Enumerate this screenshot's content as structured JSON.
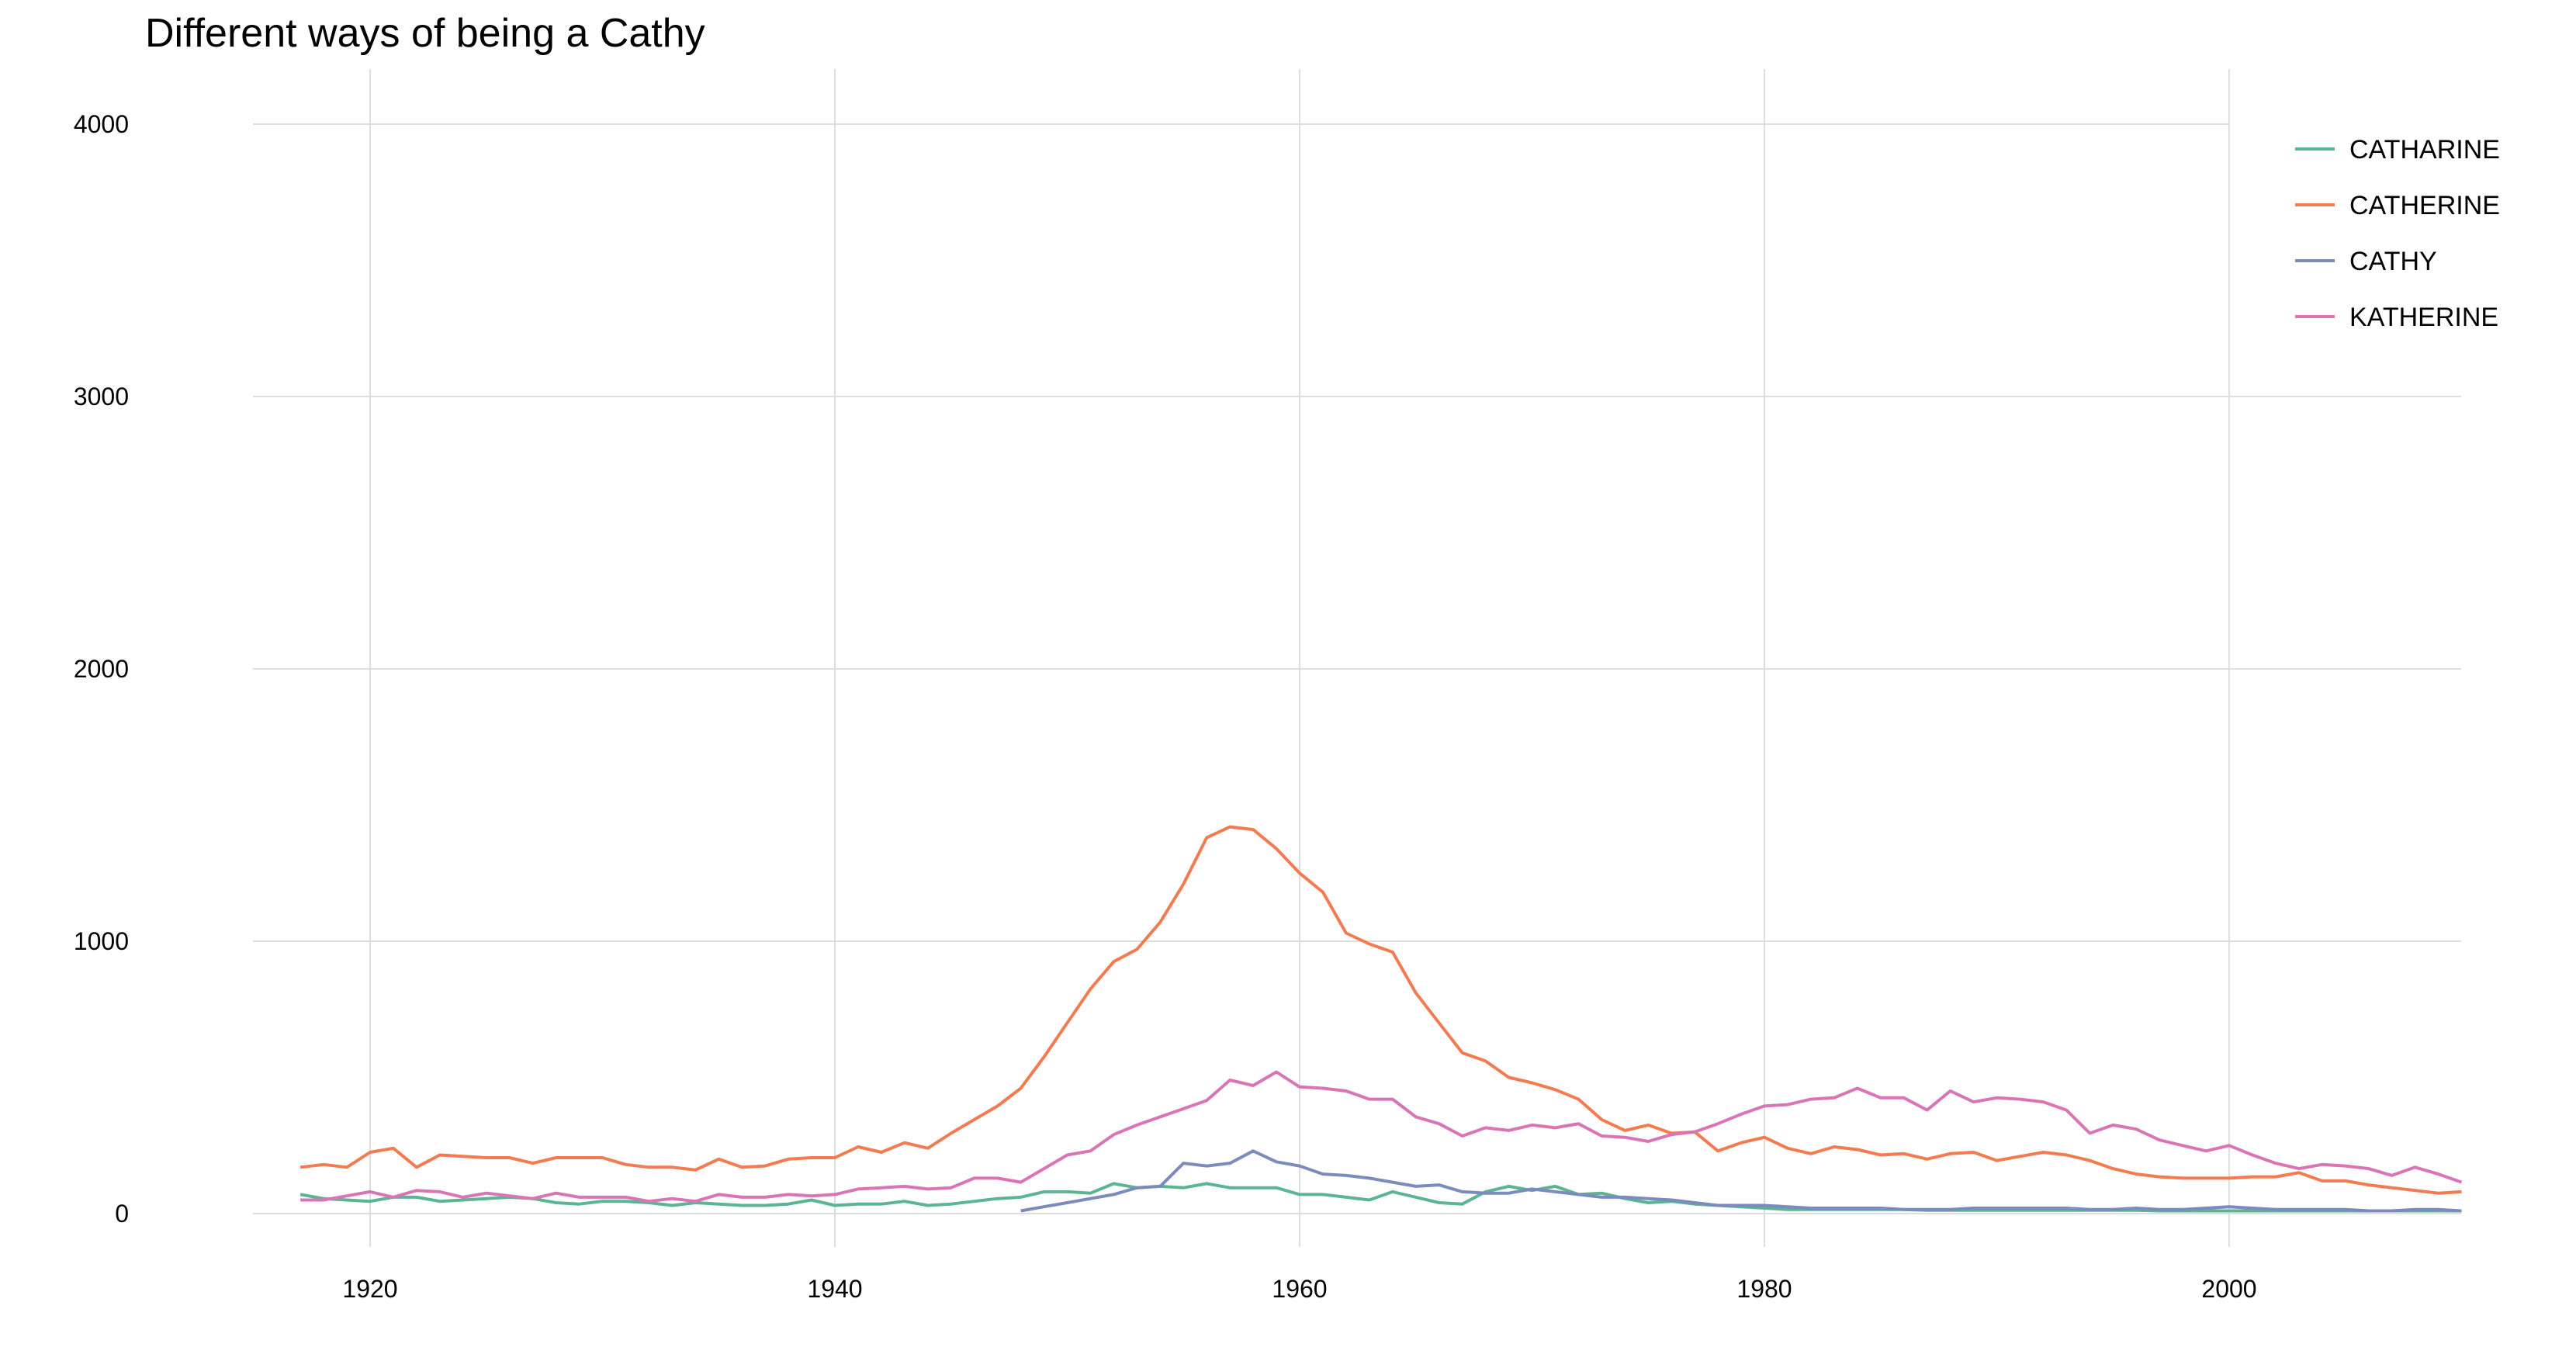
{
  "chart_data": {
    "type": "line",
    "title": "Different ways of being a Cathy",
    "xlabel": "",
    "ylabel": "",
    "xlim": [
      1917,
      2010
    ],
    "ylim": [
      0,
      4000
    ],
    "xticks": [
      1920,
      1940,
      1960,
      1980,
      2000
    ],
    "yticks": [
      0,
      1000,
      2000,
      3000,
      4000
    ],
    "grid": true,
    "legend_position": "top-right",
    "series": [
      {
        "name": "CATHARINE",
        "color": "#5bb593",
        "start_year": 1917,
        "values": [
          70,
          55,
          50,
          45,
          60,
          60,
          45,
          50,
          55,
          60,
          55,
          40,
          35,
          45,
          45,
          40,
          30,
          40,
          35,
          30,
          30,
          35,
          50,
          30,
          35,
          35,
          45,
          30,
          35,
          45,
          55,
          60,
          80,
          80,
          75,
          110,
          95,
          100,
          95,
          110,
          95,
          95,
          95,
          70,
          70,
          60,
          50,
          80,
          60,
          40,
          35,
          80,
          100,
          85,
          100,
          70,
          75,
          55,
          40,
          45,
          35,
          30,
          25,
          20,
          15,
          15,
          15,
          15,
          15,
          15,
          12,
          12,
          12,
          12,
          12,
          12,
          12,
          12,
          12,
          12,
          10,
          10,
          10,
          10,
          10,
          10,
          10,
          10,
          10,
          10,
          10,
          10,
          10,
          10
        ]
      },
      {
        "name": "CATHERINE",
        "color": "#f27b51",
        "start_year": 1917,
        "values": [
          170,
          180,
          170,
          225,
          240,
          170,
          215,
          210,
          205,
          205,
          185,
          205,
          205,
          205,
          180,
          170,
          170,
          160,
          200,
          170,
          175,
          200,
          205,
          205,
          245,
          225,
          260,
          240,
          295,
          345,
          395,
          460,
          575,
          700,
          825,
          925,
          970,
          1070,
          1210,
          1380,
          1420,
          1410,
          1340,
          1250,
          1180,
          1030,
          990,
          960,
          810,
          700,
          590,
          560,
          500,
          480,
          455,
          420,
          345,
          305,
          325,
          295,
          300,
          230,
          260,
          280,
          240,
          220,
          245,
          235,
          215,
          220,
          200,
          220,
          225,
          195,
          210,
          225,
          215,
          195,
          165,
          145,
          135,
          130,
          130,
          130,
          135,
          135,
          150,
          120,
          120,
          105,
          95,
          85,
          75,
          80
        ]
      },
      {
        "name": "CATHY",
        "color": "#7b8bbd",
        "start_year": 1948,
        "values": [
          10,
          25,
          40,
          55,
          70,
          95,
          100,
          185,
          175,
          185,
          230,
          190,
          175,
          145,
          140,
          130,
          115,
          100,
          105,
          80,
          75,
          75,
          90,
          80,
          70,
          60,
          60,
          55,
          50,
          40,
          30,
          30,
          30,
          25,
          20,
          20,
          20,
          20,
          15,
          15,
          15,
          20,
          20,
          20,
          20,
          20,
          15,
          15,
          20,
          15,
          15,
          20,
          25,
          20,
          15,
          15,
          15,
          15,
          10,
          10,
          15,
          15,
          10
        ]
      },
      {
        "name": "KATHERINE",
        "color": "#d975b5",
        "start_year": 1917,
        "values": [
          50,
          50,
          65,
          80,
          60,
          85,
          80,
          60,
          75,
          65,
          55,
          75,
          60,
          60,
          60,
          45,
          55,
          45,
          70,
          60,
          60,
          70,
          65,
          70,
          90,
          95,
          100,
          90,
          95,
          130,
          130,
          115,
          165,
          215,
          230,
          290,
          325,
          355,
          385,
          415,
          490,
          470,
          520,
          465,
          460,
          450,
          420,
          420,
          355,
          330,
          285,
          315,
          305,
          325,
          315,
          330,
          285,
          280,
          265,
          290,
          300,
          330,
          365,
          395,
          400,
          420,
          425,
          460,
          425,
          425,
          380,
          450,
          410,
          425,
          420,
          410,
          380,
          295,
          325,
          310,
          270,
          250,
          230,
          250,
          215,
          185,
          165,
          180,
          175,
          165,
          140,
          170,
          145,
          115
        ]
      }
    ]
  }
}
